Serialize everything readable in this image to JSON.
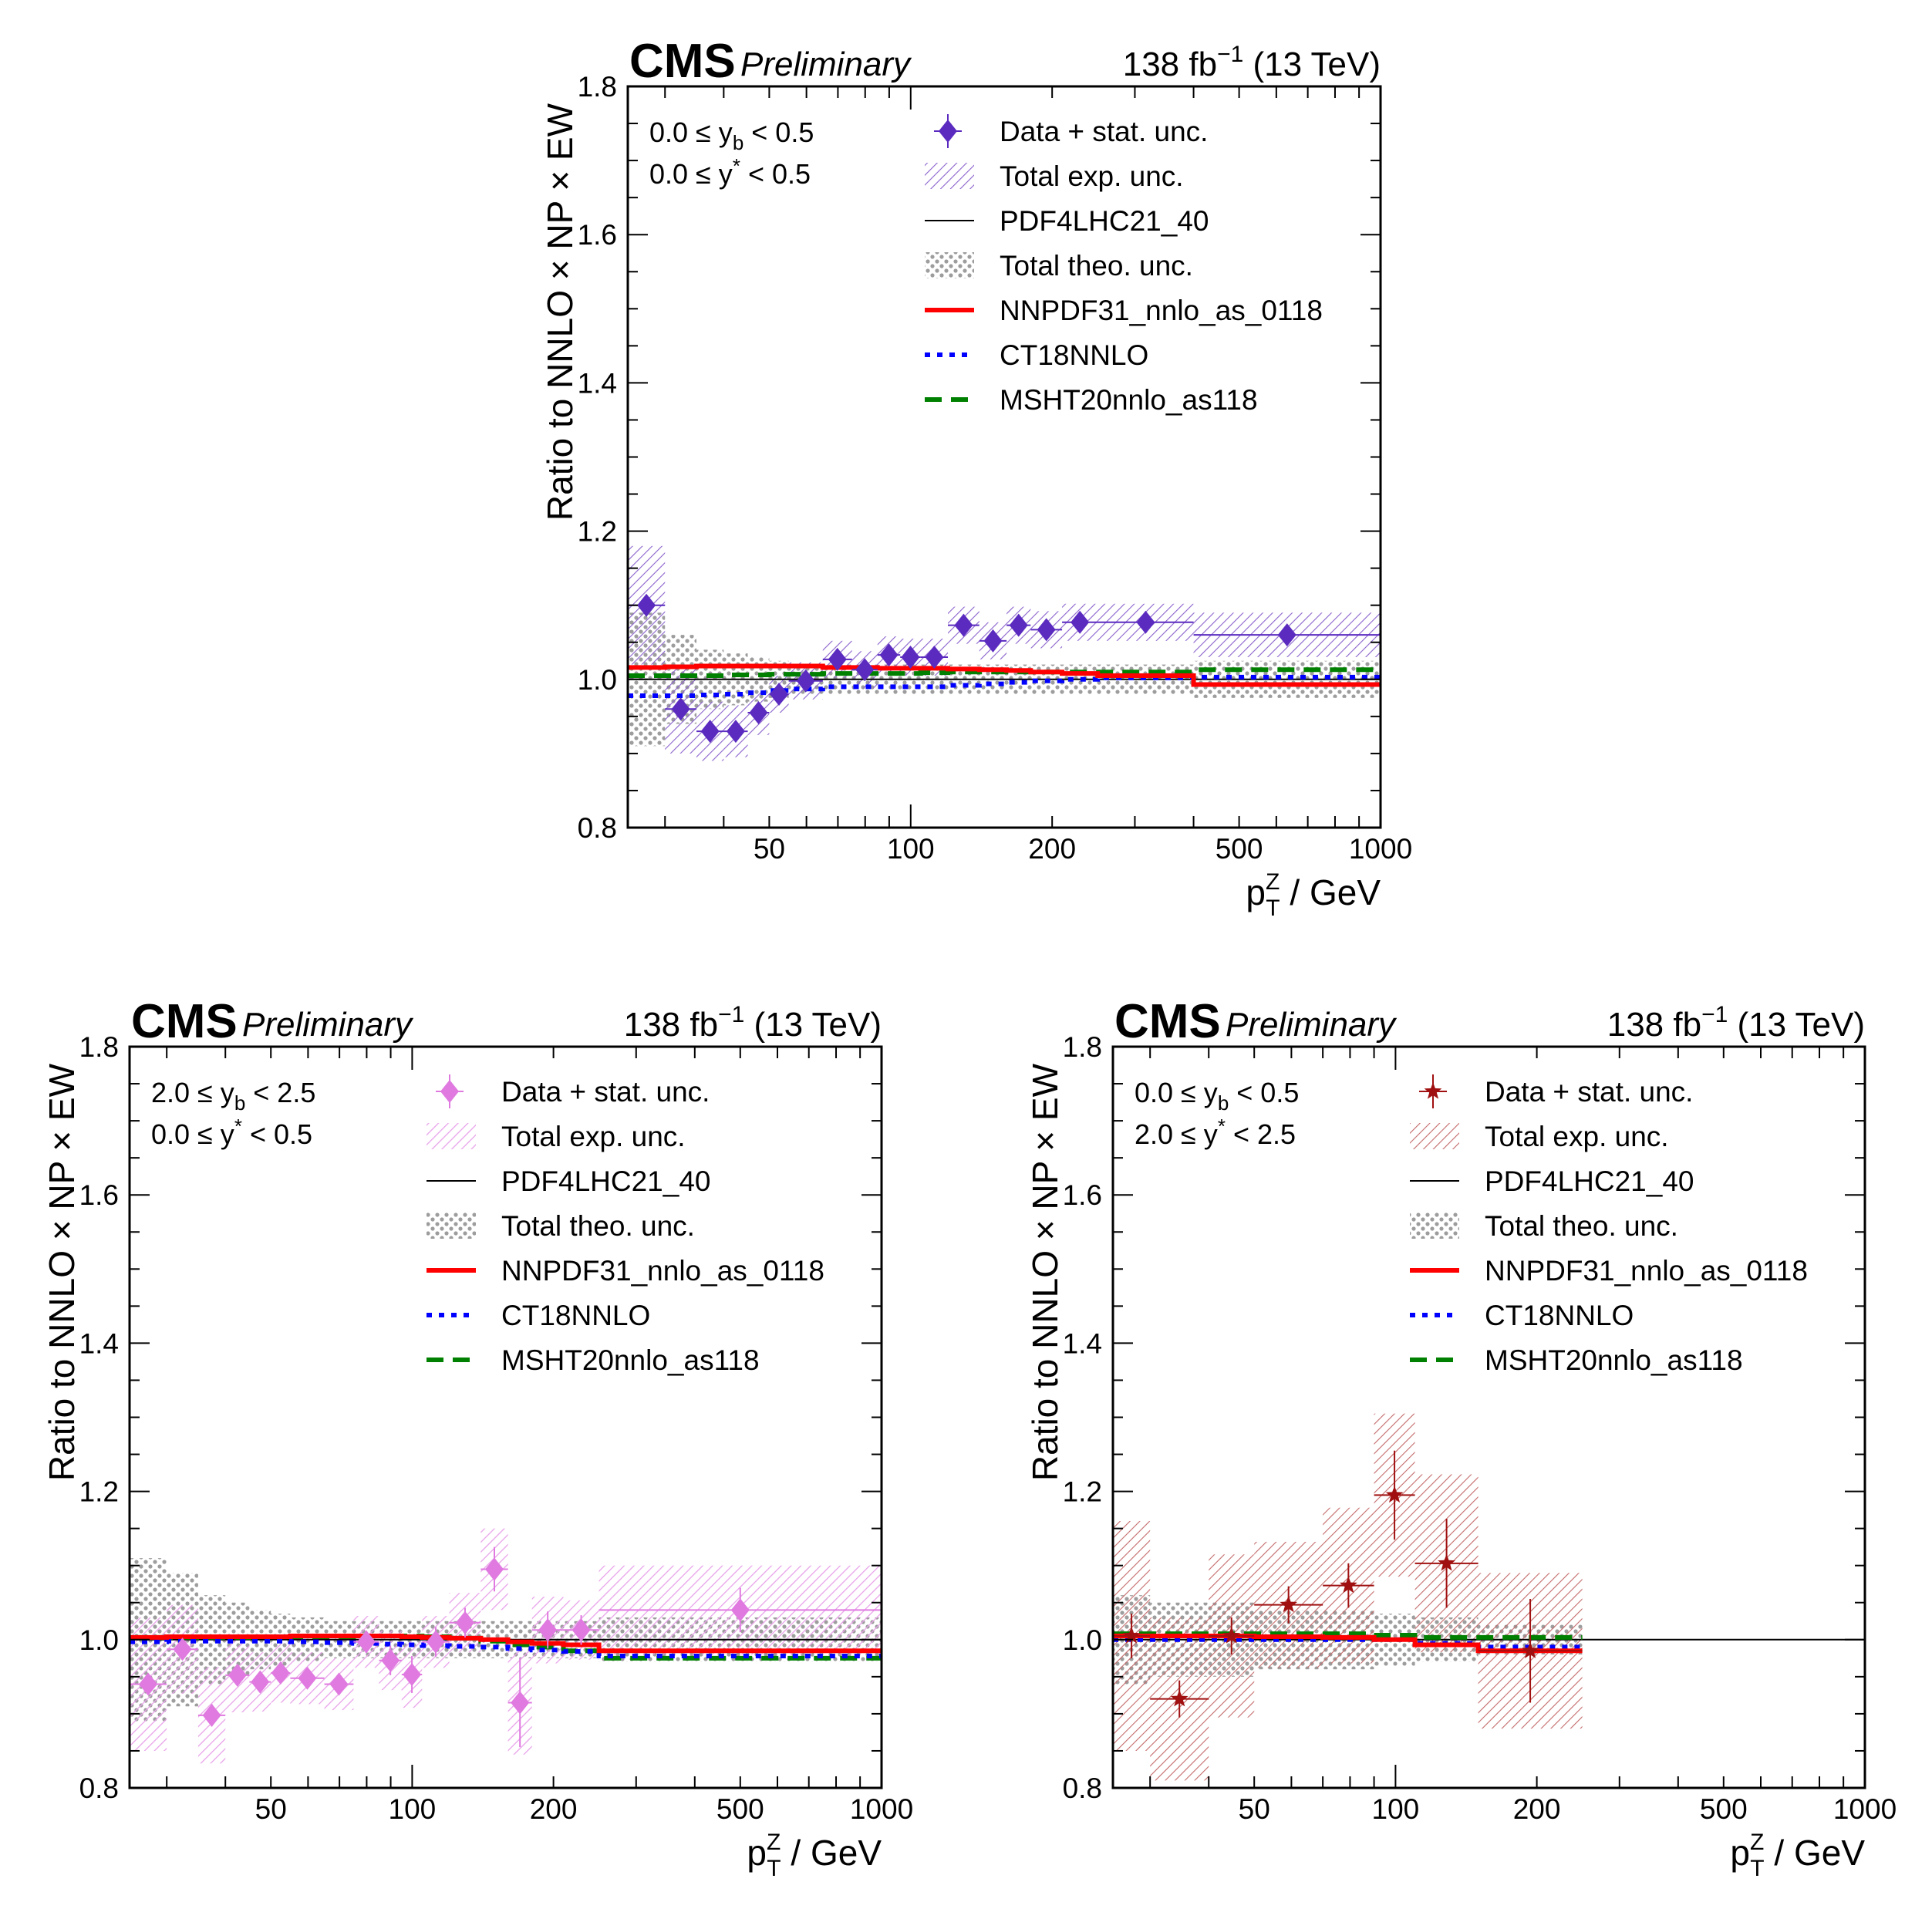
{
  "figure": {
    "experiment": "CMS",
    "status": "Preliminary",
    "lumi_prefix": "138 fb",
    "lumi_exp": "−1",
    "lumi_suffix": "(13 TeV)",
    "ylabel": "Ratio to NNLO × NP × EW",
    "xlabel_main": "p",
    "xlabel_sup": "Z",
    "xlabel_sub": "T",
    "xlabel_unit": "/ GeV",
    "colors": {
      "pdf4lhc": "#000000",
      "nnpdf": "#ff0000",
      "ct18": "#0000ff",
      "msht": "#008000",
      "theo_band": "#808080"
    }
  },
  "legend": {
    "data": "Data + stat. unc.",
    "exp": "Total exp. unc.",
    "pdf4lhc": "PDF4LHC21_40",
    "theo": "Total theo. unc.",
    "nnpdf": "NNPDF31_nnlo_as_0118",
    "ct18": "CT18NNLO",
    "msht": "MSHT20nnlo_as118"
  },
  "chart_data": [
    {
      "type": "scatter",
      "name": "top",
      "bin_label_1": "0.0 ≤ y_b < 0.5",
      "bin_label_2": "0.0 ≤ y* < 0.5",
      "bin_yb": [
        "0.0 ≤ y",
        "b",
        " < 0.5"
      ],
      "bin_ys": [
        "0.0 ≤ y",
        "*",
        " < 0.5"
      ],
      "x_scale": "log",
      "xlim": [
        25,
        1000
      ],
      "ylim": [
        0.8,
        1.8
      ],
      "x_ticks": [
        50,
        100,
        200,
        500,
        1000
      ],
      "y_ticks": [
        0.8,
        1.0,
        1.2,
        1.4,
        1.6,
        1.8
      ],
      "data_color": "#5b2bc0",
      "exp_color": "#8a62cc",
      "marker": "diamond",
      "edges": [
        25,
        30,
        35,
        40,
        45,
        50,
        55,
        65,
        75,
        85,
        95,
        105,
        120,
        140,
        160,
        180,
        210,
        250,
        400,
        1000
      ],
      "data": [
        1.1,
        0.96,
        0.93,
        0.93,
        0.955,
        0.98,
        0.998,
        1.027,
        1.013,
        1.033,
        1.03,
        1.03,
        1.073,
        1.052,
        1.073,
        1.067,
        1.077,
        1.077,
        1.06
      ],
      "stat": [
        0.008,
        0.006,
        0.006,
        0.006,
        0.006,
        0.006,
        0.006,
        0.006,
        0.006,
        0.006,
        0.006,
        0.006,
        0.006,
        0.006,
        0.006,
        0.006,
        0.006,
        0.006,
        0.01
      ],
      "exp_unc": [
        0.08,
        0.06,
        0.04,
        0.035,
        0.03,
        0.025,
        0.025,
        0.025,
        0.025,
        0.025,
        0.025,
        0.025,
        0.025,
        0.025,
        0.025,
        0.025,
        0.025,
        0.025,
        0.03
      ],
      "theo_unc": [
        0.09,
        0.06,
        0.04,
        0.035,
        0.03,
        0.025,
        0.02,
        0.02,
        0.02,
        0.02,
        0.02,
        0.02,
        0.02,
        0.02,
        0.02,
        0.02,
        0.02,
        0.02,
        0.025
      ],
      "nnpdf": [
        1.016,
        1.017,
        1.018,
        1.018,
        1.018,
        1.018,
        1.018,
        1.016,
        1.016,
        1.015,
        1.015,
        1.015,
        1.014,
        1.013,
        1.012,
        1.01,
        1.008,
        1.005,
        0.993
      ],
      "ct18": [
        0.978,
        0.978,
        0.979,
        0.98,
        0.982,
        0.985,
        0.987,
        0.99,
        0.99,
        0.99,
        0.99,
        0.99,
        0.992,
        0.994,
        0.996,
        0.998,
        1.0,
        1.002,
        1.003
      ],
      "msht": [
        1.005,
        1.005,
        1.005,
        1.006,
        1.006,
        1.007,
        1.007,
        1.008,
        1.008,
        1.008,
        1.008,
        1.009,
        1.01,
        1.01,
        1.01,
        1.01,
        1.01,
        1.01,
        1.013
      ]
    },
    {
      "type": "scatter",
      "name": "bottom-left",
      "bin_yb": [
        "2.0 ≤ y",
        "b",
        " < 2.5"
      ],
      "bin_ys": [
        "0.0 ≤ y",
        "*",
        " < 0.5"
      ],
      "x_scale": "log",
      "xlim": [
        25,
        1000
      ],
      "ylim": [
        0.8,
        1.8
      ],
      "x_ticks": [
        50,
        100,
        200,
        500,
        1000
      ],
      "y_ticks": [
        0.8,
        1.0,
        1.2,
        1.4,
        1.6,
        1.8
      ],
      "data_color": "#e07ae0",
      "exp_color": "#e8a3ea",
      "marker": "diamond",
      "edges": [
        25,
        30,
        35,
        40,
        45,
        50,
        55,
        65,
        75,
        85,
        95,
        105,
        120,
        140,
        160,
        180,
        210,
        250,
        1000
      ],
      "data": [
        0.94,
        0.987,
        0.898,
        0.952,
        0.943,
        0.955,
        0.948,
        0.94,
        0.997,
        0.972,
        0.953,
        0.997,
        1.023,
        1.095,
        0.915,
        1.013,
        1.013,
        1.04
      ],
      "stat": [
        0.01,
        0.01,
        0.015,
        0.012,
        0.01,
        0.01,
        0.01,
        0.01,
        0.015,
        0.02,
        0.025,
        0.02,
        0.02,
        0.03,
        0.06,
        0.025,
        0.02,
        0.03
      ],
      "exp_unc": [
        0.09,
        0.06,
        0.065,
        0.05,
        0.04,
        0.04,
        0.035,
        0.035,
        0.035,
        0.04,
        0.045,
        0.035,
        0.04,
        0.055,
        0.07,
        0.045,
        0.04,
        0.06
      ],
      "theo_unc": [
        0.11,
        0.09,
        0.06,
        0.05,
        0.04,
        0.035,
        0.03,
        0.025,
        0.025,
        0.025,
        0.025,
        0.025,
        0.025,
        0.025,
        0.025,
        0.025,
        0.025,
        0.03
      ],
      "nnpdf": [
        1.003,
        1.004,
        1.004,
        1.004,
        1.004,
        1.004,
        1.005,
        1.005,
        1.005,
        1.005,
        1.004,
        1.003,
        1.002,
        1.0,
        0.997,
        0.995,
        0.993,
        0.985
      ],
      "ct18": [
        0.997,
        0.998,
        0.998,
        0.998,
        0.998,
        0.998,
        0.997,
        0.996,
        0.995,
        0.994,
        0.993,
        0.992,
        0.991,
        0.99,
        0.988,
        0.986,
        0.984,
        0.978
      ],
      "msht": [
        1.003,
        1.003,
        1.003,
        1.003,
        1.004,
        1.004,
        1.004,
        1.004,
        1.005,
        1.005,
        1.005,
        1.004,
        1.002,
        0.998,
        0.993,
        0.99,
        0.985,
        0.975
      ]
    },
    {
      "type": "scatter",
      "name": "bottom-right",
      "bin_yb": [
        "0.0 ≤ y",
        "b",
        " < 0.5"
      ],
      "bin_ys": [
        "2.0 ≤ y",
        "*",
        " < 2.5"
      ],
      "x_scale": "log",
      "xlim": [
        25,
        1000
      ],
      "ylim": [
        0.8,
        1.8
      ],
      "x_ticks": [
        50,
        100,
        200,
        500,
        1000
      ],
      "y_ticks": [
        0.8,
        1.0,
        1.2,
        1.4,
        1.6,
        1.8
      ],
      "data_color": "#a01010",
      "exp_color": "#c46a6a",
      "marker": "star",
      "edges": [
        25,
        30,
        40,
        50,
        70,
        90,
        110,
        150,
        250
      ],
      "data": [
        1.005,
        0.92,
        1.005,
        1.047,
        1.073,
        1.195,
        1.103,
        0.985
      ],
      "stat": [
        0.03,
        0.025,
        0.025,
        0.025,
        0.03,
        0.06,
        0.06,
        0.07
      ],
      "exp_unc": [
        0.155,
        0.11,
        0.11,
        0.085,
        0.105,
        0.11,
        0.12,
        0.105
      ],
      "theo_unc": [
        0.06,
        0.05,
        0.05,
        0.04,
        0.04,
        0.035,
        0.03,
        0.02
      ],
      "nnpdf": [
        1.005,
        1.005,
        1.005,
        1.004,
        1.003,
        1.0,
        0.993,
        0.985
      ],
      "ct18": [
        1.0,
        1.0,
        1.0,
        1.0,
        1.0,
        1.0,
        0.995,
        0.99
      ],
      "msht": [
        1.008,
        1.008,
        1.008,
        1.008,
        1.008,
        1.006,
        1.003,
        1.003
      ]
    }
  ]
}
